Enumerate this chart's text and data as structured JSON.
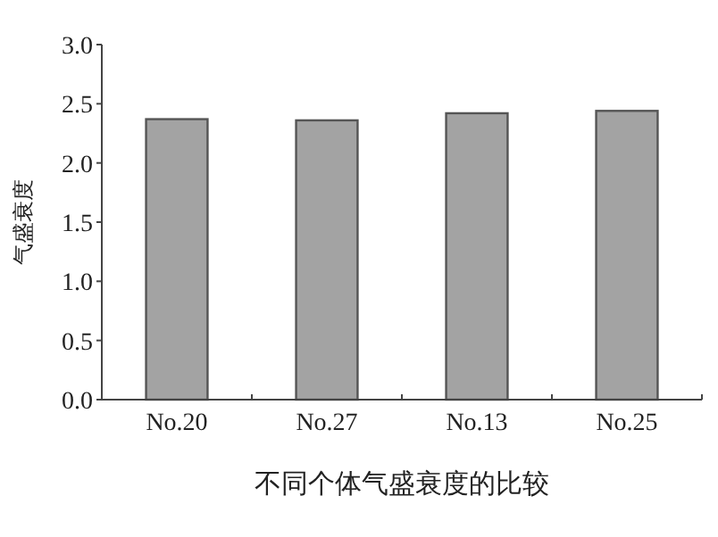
{
  "chart_data": {
    "type": "bar",
    "title": "不同个体气盛衰度的比较",
    "ylabel": "气盛衰度",
    "categories": [
      "No.20",
      "No.27",
      "No.13",
      "No.25"
    ],
    "values": [
      2.37,
      2.36,
      2.42,
      2.44
    ],
    "color": "#a3a3a3",
    "ylim": [
      0,
      3
    ],
    "yticks": [
      {
        "value": 0,
        "label": "0.0"
      },
      {
        "value": 0.5,
        "label": "0.5"
      },
      {
        "value": 1,
        "label": "1.0"
      },
      {
        "value": 1.5,
        "label": "1.5"
      },
      {
        "value": 2,
        "label": "2.0"
      },
      {
        "value": 2.5,
        "label": "2.5"
      },
      {
        "value": 3,
        "label": "3.0"
      }
    ],
    "grid": false
  }
}
